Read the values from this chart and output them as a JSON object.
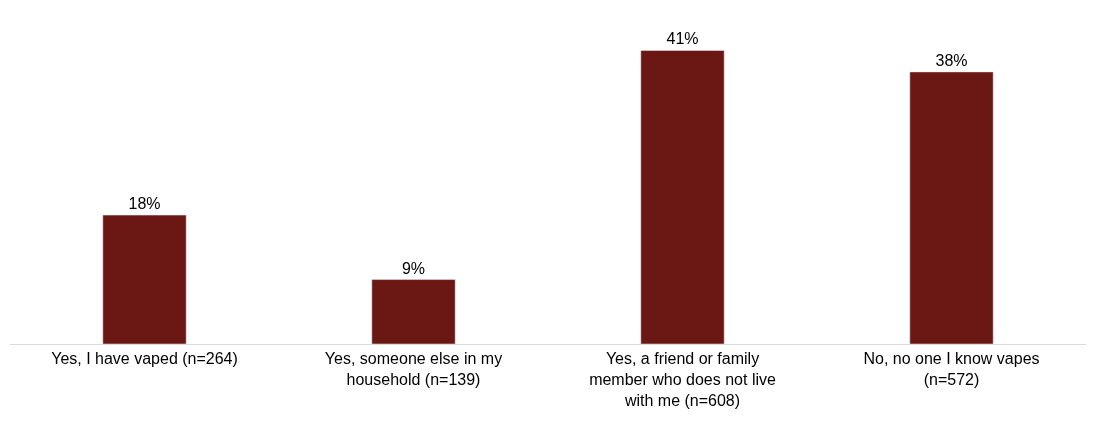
{
  "chart_data": {
    "type": "bar",
    "categories": [
      "Yes, I have vaped (n=264)",
      "Yes, someone else in my household (n=139)",
      "Yes, a friend or family member who does not live with me (n=608)",
      "No, no one I know vapes (n=572)"
    ],
    "values": [
      18,
      9,
      41,
      38
    ],
    "value_labels": [
      "18%",
      "9%",
      "41%",
      "38%"
    ],
    "color": "#6b1815"
  }
}
